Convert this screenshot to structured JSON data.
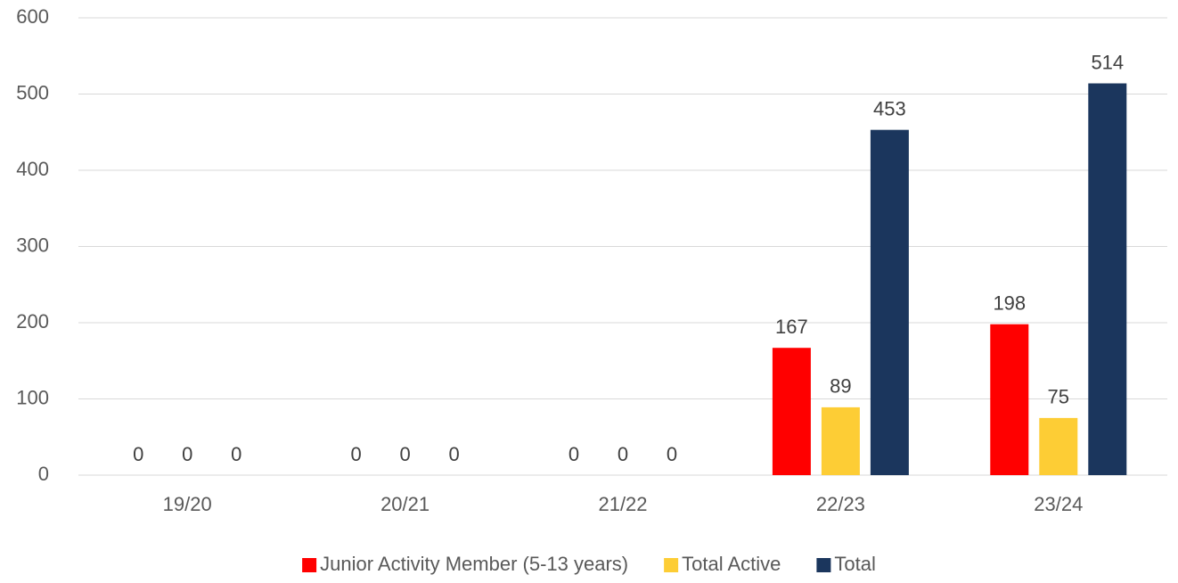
{
  "chart_data": {
    "type": "bar",
    "categories": [
      "19/20",
      "20/21",
      "21/22",
      "22/23",
      "23/24"
    ],
    "series": [
      {
        "name": "Junior Activity Member (5-13 years)",
        "color": "#ff0000",
        "values": [
          0,
          0,
          0,
          167,
          198
        ]
      },
      {
        "name": "Total Active",
        "color": "#fdcd35",
        "values": [
          0,
          0,
          0,
          89,
          75
        ]
      },
      {
        "name": "Total",
        "color": "#1b365d",
        "values": [
          0,
          0,
          0,
          453,
          514
        ]
      }
    ],
    "ylim": [
      0,
      600
    ],
    "yticks": [
      0,
      100,
      200,
      300,
      400,
      500,
      600
    ],
    "grid": true,
    "legend": "bottom"
  }
}
